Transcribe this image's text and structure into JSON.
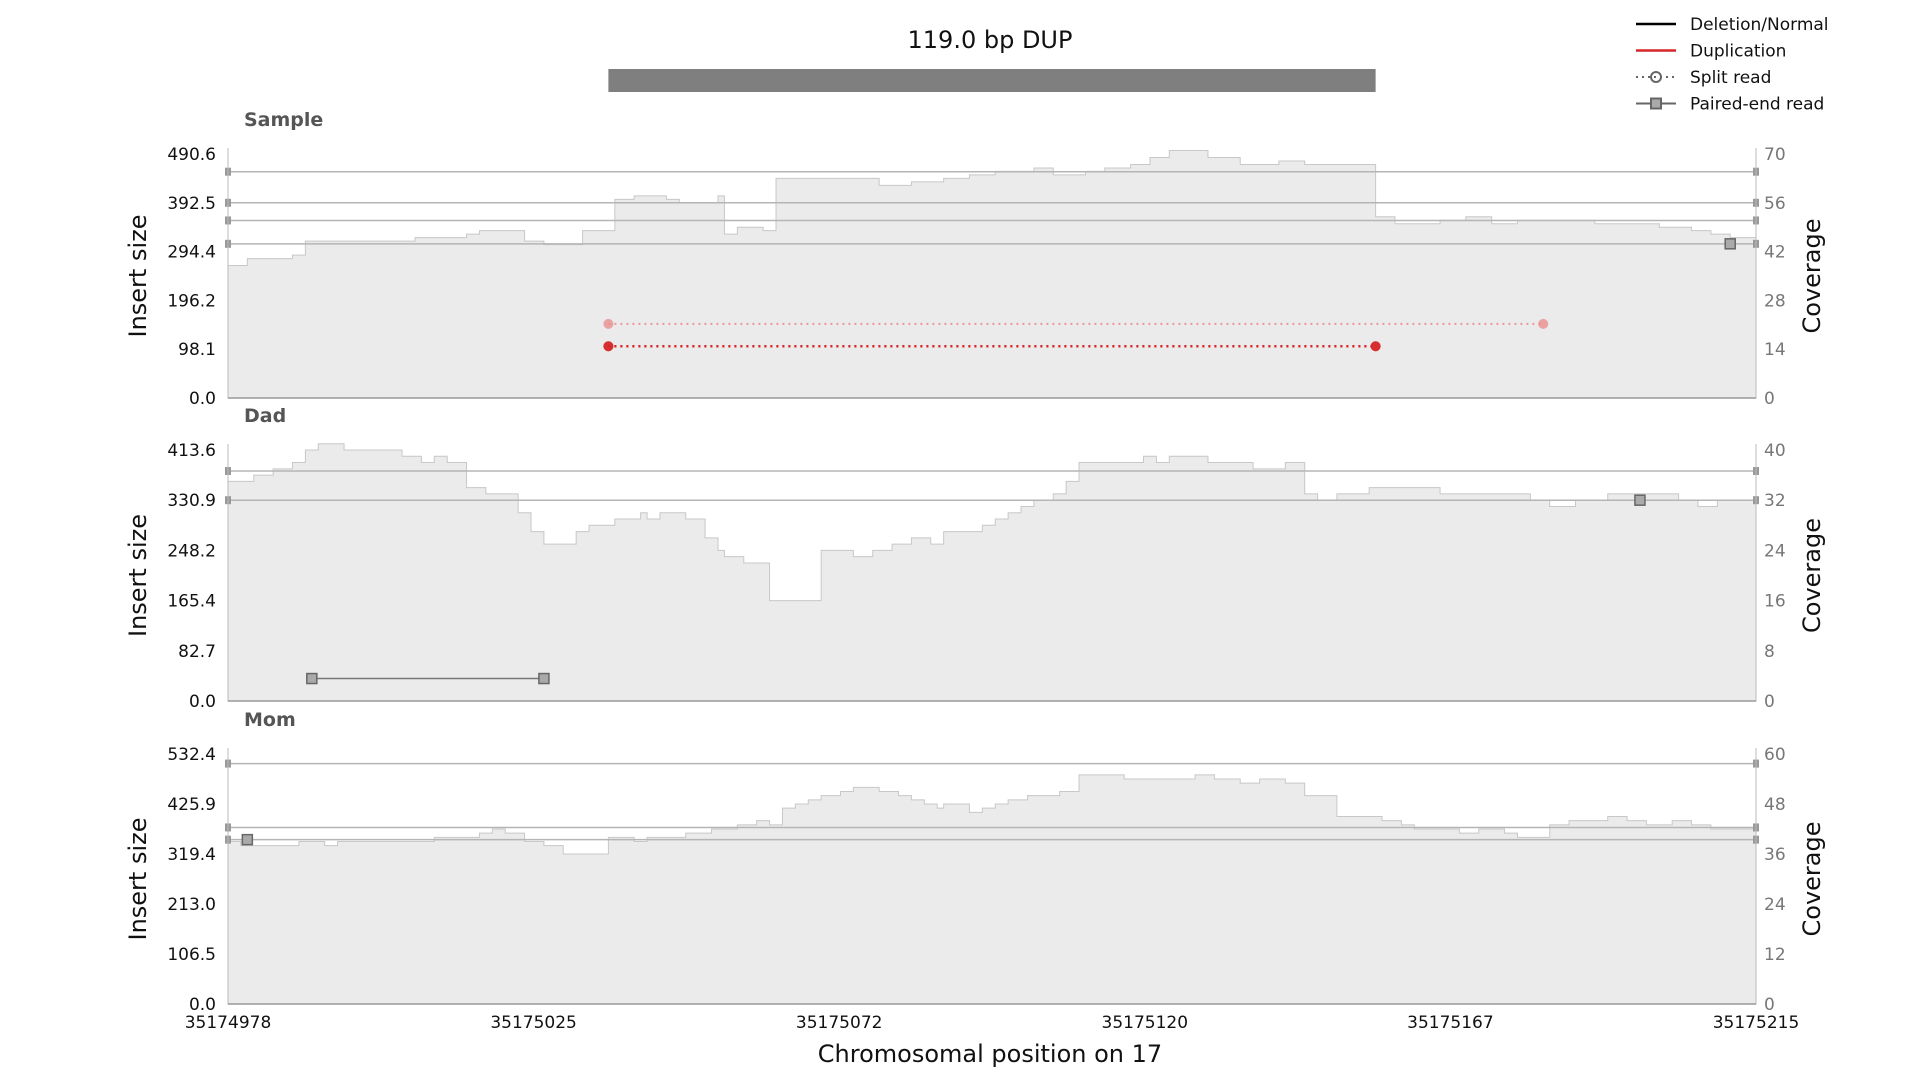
{
  "chart_data": {
    "type": "line",
    "title": "119.0 bp DUP",
    "xlabel": "Chromosomal position on 17",
    "x_ticks": [
      "35174978",
      "35175025",
      "35175072",
      "35175120",
      "35175167",
      "35175215"
    ],
    "xlim": [
      35174978,
      35175215
    ],
    "sv_region": [
      35175037,
      35175156
    ],
    "legend": {
      "placement": "top-right",
      "entries": [
        {
          "label": "Deletion/Normal",
          "color": "#000000",
          "style": "solid"
        },
        {
          "label": "Duplication",
          "color": "#d62728",
          "style": "solid"
        },
        {
          "label": "Split read",
          "color": "#666666",
          "style": "dotted-circle"
        },
        {
          "label": "Paired-end read",
          "color": "#666666",
          "style": "solid-square"
        }
      ]
    },
    "panels": [
      {
        "name": "Sample",
        "ylabel_left": "Insert size",
        "ylabel_right": "Coverage",
        "left_ticks": [
          "0.0",
          "98.1",
          "196.2",
          "294.4",
          "392.5",
          "490.6"
        ],
        "left_max": 490.6,
        "right_ticks": [
          "0",
          "14",
          "28",
          "42",
          "56",
          "70"
        ],
        "right_max": 70,
        "coverage": [
          [
            35174978,
            38
          ],
          [
            35174981,
            40
          ],
          [
            35174988,
            41
          ],
          [
            35174990,
            45
          ],
          [
            35175005,
            45
          ],
          [
            35175007,
            46
          ],
          [
            35175010,
            46
          ],
          [
            35175012,
            46
          ],
          [
            35175015,
            47
          ],
          [
            35175017,
            48
          ],
          [
            35175024,
            45
          ],
          [
            35175027,
            44
          ],
          [
            35175033,
            48
          ],
          [
            35175038,
            57
          ],
          [
            35175041,
            58
          ],
          [
            35175046,
            57
          ],
          [
            35175048,
            56
          ],
          [
            35175054,
            58
          ],
          [
            35175055,
            47
          ],
          [
            35175057,
            49
          ],
          [
            35175061,
            48
          ],
          [
            35175063,
            63
          ],
          [
            35175077,
            63
          ],
          [
            35175079,
            61
          ],
          [
            35175084,
            62
          ],
          [
            35175089,
            63
          ],
          [
            35175093,
            64
          ],
          [
            35175097,
            65
          ],
          [
            35175103,
            66
          ],
          [
            35175106,
            64
          ],
          [
            35175111,
            65
          ],
          [
            35175114,
            66
          ],
          [
            35175118,
            67
          ],
          [
            35175121,
            69
          ],
          [
            35175124,
            71
          ],
          [
            35175130,
            69
          ],
          [
            35175135,
            67
          ],
          [
            35175141,
            68
          ],
          [
            35175145,
            67
          ],
          [
            35175150,
            67
          ],
          [
            35175154,
            67
          ],
          [
            35175156,
            52
          ],
          [
            35175159,
            50
          ],
          [
            35175163,
            50
          ],
          [
            35175166,
            51
          ],
          [
            35175170,
            52
          ],
          [
            35175174,
            50
          ],
          [
            35175178,
            51
          ],
          [
            35175190,
            50
          ],
          [
            35175200,
            49
          ],
          [
            35175205,
            48
          ],
          [
            35175208,
            47
          ],
          [
            35175211,
            46
          ],
          [
            35175215,
            46
          ]
        ],
        "insert_lines": [
          455,
          392.5,
          357,
          310
        ],
        "split_reads": [
          {
            "x1": 35175037,
            "x2": 35175156,
            "y": 104,
            "color": "#d62728"
          },
          {
            "x1": 35175037,
            "x2": 35175156,
            "y": 104,
            "color": "#d62728"
          },
          {
            "x1": 35175037,
            "x2": 35175182,
            "y": 149,
            "color": "#e8908f"
          }
        ],
        "paired_ends": [
          {
            "x": 35175211,
            "y": 310
          }
        ]
      },
      {
        "name": "Dad",
        "ylabel_left": "Insert size",
        "ylabel_right": "Coverage",
        "left_ticks": [
          "0.0",
          "82.7",
          "165.4",
          "248.2",
          "330.9",
          "413.6"
        ],
        "left_max": 413.6,
        "right_ticks": [
          "0",
          "8",
          "16",
          "24",
          "32",
          "40"
        ],
        "right_max": 40,
        "coverage": [
          [
            35174978,
            35
          ],
          [
            35174982,
            36
          ],
          [
            35174985,
            37
          ],
          [
            35174988,
            38
          ],
          [
            35174990,
            40
          ],
          [
            35174992,
            41
          ],
          [
            35174996,
            40
          ],
          [
            35175002,
            40
          ],
          [
            35175005,
            39
          ],
          [
            35175008,
            38
          ],
          [
            35175010,
            39
          ],
          [
            35175012,
            38
          ],
          [
            35175015,
            34
          ],
          [
            35175018,
            33
          ],
          [
            35175023,
            30
          ],
          [
            35175025,
            27
          ],
          [
            35175027,
            25
          ],
          [
            35175032,
            27
          ],
          [
            35175034,
            28
          ],
          [
            35175038,
            29
          ],
          [
            35175042,
            30
          ],
          [
            35175043,
            29
          ],
          [
            35175045,
            30
          ],
          [
            35175049,
            29
          ],
          [
            35175052,
            26
          ],
          [
            35175054,
            24
          ],
          [
            35175055,
            23
          ],
          [
            35175058,
            22
          ],
          [
            35175062,
            16
          ],
          [
            35175070,
            24
          ],
          [
            35175075,
            23
          ],
          [
            35175078,
            24
          ],
          [
            35175081,
            25
          ],
          [
            35175084,
            26
          ],
          [
            35175087,
            25
          ],
          [
            35175089,
            27
          ],
          [
            35175095,
            28
          ],
          [
            35175097,
            29
          ],
          [
            35175099,
            30
          ],
          [
            35175101,
            31
          ],
          [
            35175103,
            32
          ],
          [
            35175106,
            33
          ],
          [
            35175108,
            35
          ],
          [
            35175110,
            38
          ],
          [
            35175120,
            39
          ],
          [
            35175122,
            38
          ],
          [
            35175124,
            39
          ],
          [
            35175130,
            38
          ],
          [
            35175137,
            37
          ],
          [
            35175142,
            38
          ],
          [
            35175145,
            33
          ],
          [
            35175147,
            32
          ],
          [
            35175150,
            33
          ],
          [
            35175155,
            34
          ],
          [
            35175166,
            33
          ],
          [
            35175174,
            33
          ],
          [
            35175180,
            32
          ],
          [
            35175183,
            31
          ],
          [
            35175187,
            32
          ],
          [
            35175192,
            33
          ],
          [
            35175203,
            32
          ],
          [
            35175206,
            31
          ],
          [
            35175209,
            32
          ],
          [
            35175215,
            31
          ]
        ],
        "insert_lines": [
          379,
          330.9
        ],
        "split_reads": [],
        "paired_ends_pairs": [
          {
            "x1": 35174991,
            "x2": 35175027,
            "y": 37
          }
        ],
        "paired_ends": [
          {
            "x": 35175197,
            "y": 330.9
          }
        ]
      },
      {
        "name": "Mom",
        "ylabel_left": "Insert size",
        "ylabel_right": "Coverage",
        "left_ticks": [
          "0.0",
          "106.5",
          "213.0",
          "319.4",
          "425.9",
          "532.4"
        ],
        "left_max": 532.4,
        "right_ticks": [
          "0",
          "12",
          "24",
          "36",
          "48",
          "60"
        ],
        "right_max": 60,
        "coverage": [
          [
            35174978,
            39
          ],
          [
            35174980,
            38
          ],
          [
            35174986,
            38
          ],
          [
            35174989,
            39
          ],
          [
            35174993,
            38
          ],
          [
            35174995,
            39
          ],
          [
            35175003,
            39
          ],
          [
            35175010,
            40
          ],
          [
            35175015,
            40
          ],
          [
            35175017,
            41
          ],
          [
            35175019,
            42
          ],
          [
            35175021,
            41
          ],
          [
            35175024,
            39
          ],
          [
            35175027,
            38
          ],
          [
            35175030,
            36
          ],
          [
            35175037,
            40
          ],
          [
            35175041,
            39
          ],
          [
            35175043,
            40
          ],
          [
            35175046,
            40
          ],
          [
            35175048,
            40
          ],
          [
            35175049,
            41
          ],
          [
            35175053,
            42
          ],
          [
            35175057,
            43
          ],
          [
            35175060,
            44
          ],
          [
            35175062,
            43
          ],
          [
            35175064,
            47
          ],
          [
            35175066,
            48
          ],
          [
            35175068,
            49
          ],
          [
            35175070,
            50
          ],
          [
            35175073,
            51
          ],
          [
            35175075,
            52
          ],
          [
            35175079,
            51
          ],
          [
            35175082,
            50
          ],
          [
            35175084,
            49
          ],
          [
            35175086,
            48
          ],
          [
            35175088,
            47
          ],
          [
            35175089,
            48
          ],
          [
            35175093,
            46
          ],
          [
            35175095,
            47
          ],
          [
            35175097,
            48
          ],
          [
            35175099,
            49
          ],
          [
            35175102,
            50
          ],
          [
            35175107,
            51
          ],
          [
            35175110,
            55
          ],
          [
            35175117,
            54
          ],
          [
            35175118,
            54
          ],
          [
            35175128,
            55
          ],
          [
            35175131,
            54
          ],
          [
            35175135,
            53
          ],
          [
            35175138,
            54
          ],
          [
            35175142,
            53
          ],
          [
            35175145,
            50
          ],
          [
            35175150,
            45
          ],
          [
            35175157,
            44
          ],
          [
            35175160,
            43
          ],
          [
            35175162,
            42
          ],
          [
            35175167,
            42
          ],
          [
            35175169,
            41
          ],
          [
            35175172,
            42
          ],
          [
            35175176,
            41
          ],
          [
            35175178,
            40
          ],
          [
            35175183,
            43
          ],
          [
            35175186,
            44
          ],
          [
            35175190,
            44
          ],
          [
            35175192,
            45
          ],
          [
            35175195,
            44
          ],
          [
            35175198,
            43
          ],
          [
            35175202,
            44
          ],
          [
            35175205,
            43
          ],
          [
            35175208,
            42
          ],
          [
            35175215,
            42
          ]
        ],
        "insert_lines": [
          512,
          376,
          350
        ],
        "split_reads": [],
        "paired_ends": [
          {
            "x": 35174981,
            "y": 350
          }
        ]
      }
    ]
  }
}
